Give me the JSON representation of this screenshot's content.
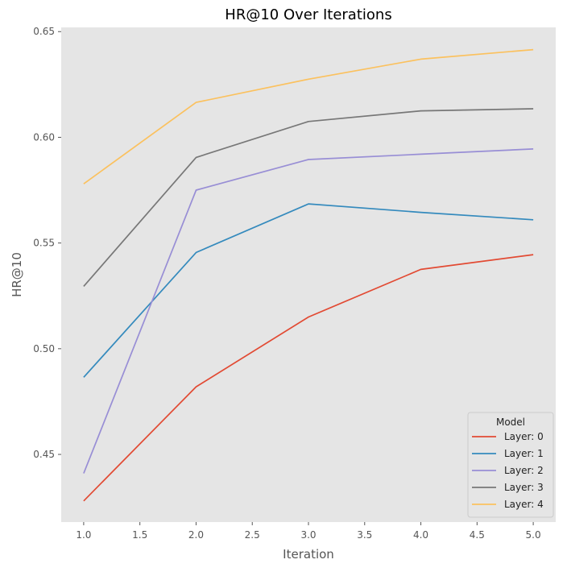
{
  "chart_data": {
    "type": "line",
    "title": "HR@10 Over Iterations",
    "xlabel": "Iteration",
    "ylabel": "HR@10",
    "xlim": [
      0.8,
      5.2
    ],
    "ylim": [
      0.418,
      0.652
    ],
    "x": [
      1.0,
      2.0,
      3.0,
      4.0,
      5.0
    ],
    "x_ticks": [
      1.0,
      1.5,
      2.0,
      2.5,
      3.0,
      3.5,
      4.0,
      4.5,
      5.0
    ],
    "x_tick_labels": [
      "1.0",
      "1.5",
      "2.0",
      "2.5",
      "3.0",
      "3.5",
      "4.0",
      "4.5",
      "5.0"
    ],
    "y_ticks": [
      0.45,
      0.5,
      0.55,
      0.6,
      0.65
    ],
    "y_tick_labels": [
      "0.45",
      "0.50",
      "0.55",
      "0.60",
      "0.65"
    ],
    "grid": false,
    "background": "#E5E5E5",
    "legend": {
      "title": "Model",
      "placement": "lower-right"
    },
    "series": [
      {
        "name": "Layer: 0",
        "color": "#E24A33",
        "values": [
          0.428,
          0.482,
          0.515,
          0.5375,
          0.5445
        ]
      },
      {
        "name": "Layer: 1",
        "color": "#348ABD",
        "values": [
          0.4865,
          0.5455,
          0.5685,
          0.5645,
          0.561
        ]
      },
      {
        "name": "Layer: 2",
        "color": "#988ED5",
        "values": [
          0.441,
          0.575,
          0.5895,
          0.592,
          0.5945
        ]
      },
      {
        "name": "Layer: 3",
        "color": "#777777",
        "values": [
          0.5295,
          0.5905,
          0.6075,
          0.6125,
          0.6135
        ]
      },
      {
        "name": "Layer: 4",
        "color": "#FBC15E",
        "values": [
          0.578,
          0.6165,
          0.6275,
          0.637,
          0.6415
        ]
      }
    ]
  }
}
